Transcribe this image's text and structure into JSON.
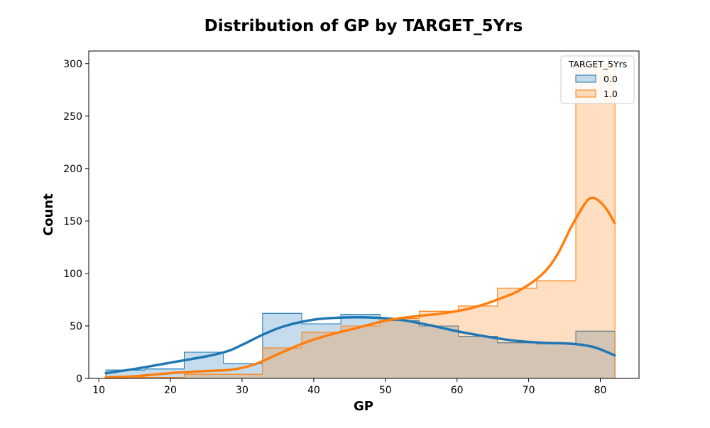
{
  "chart_data": {
    "type": "histogram",
    "title": "Distribution of GP by TARGET_5Yrs",
    "xlabel": "GP",
    "ylabel": "Count",
    "xlim": [
      8.6,
      85.4
    ],
    "ylim": [
      0,
      312
    ],
    "xticks": [
      10,
      20,
      30,
      40,
      50,
      60,
      70,
      80
    ],
    "yticks": [
      0,
      50,
      100,
      150,
      200,
      250,
      300
    ],
    "bin_edges": [
      11.0,
      16.47,
      21.93,
      27.4,
      32.86,
      38.33,
      43.79,
      49.26,
      54.72,
      60.19,
      65.65,
      71.12,
      76.58,
      82.05
    ],
    "legend": {
      "title": "TARGET_5Yrs",
      "position": "top-right"
    },
    "grid": false,
    "series": [
      {
        "name": "0.0",
        "color": "#1f77b4",
        "counts": [
          8,
          9,
          25,
          14,
          62,
          52,
          61,
          55,
          50,
          40,
          34,
          33,
          45
        ],
        "kde": {
          "x": [
            11,
            15,
            20,
            25,
            28,
            30,
            33,
            36,
            40,
            44,
            48,
            52,
            56,
            60,
            64,
            68,
            72,
            76,
            79,
            82
          ],
          "y": [
            5,
            9,
            15,
            21,
            26,
            32,
            42,
            50,
            56,
            58,
            58,
            56,
            51,
            45,
            40,
            36,
            34,
            33,
            30,
            22
          ]
        }
      },
      {
        "name": "1.0",
        "color": "#ff7f0e",
        "counts": [
          1,
          1,
          4,
          4,
          29,
          44,
          50,
          57,
          64,
          69,
          86,
          93,
          299
        ],
        "kde": {
          "x": [
            11,
            15,
            20,
            25,
            28,
            30,
            32,
            35,
            38,
            40,
            43,
            46,
            50,
            54,
            58,
            62,
            66,
            69,
            72,
            74,
            76,
            78,
            79,
            80,
            81,
            82
          ],
          "y": [
            1,
            2,
            5,
            7,
            8,
            10,
            14,
            23,
            32,
            37,
            43,
            48,
            55,
            59,
            62,
            67,
            76,
            85,
            100,
            118,
            145,
            168,
            172,
            168,
            160,
            148
          ]
        }
      }
    ]
  }
}
